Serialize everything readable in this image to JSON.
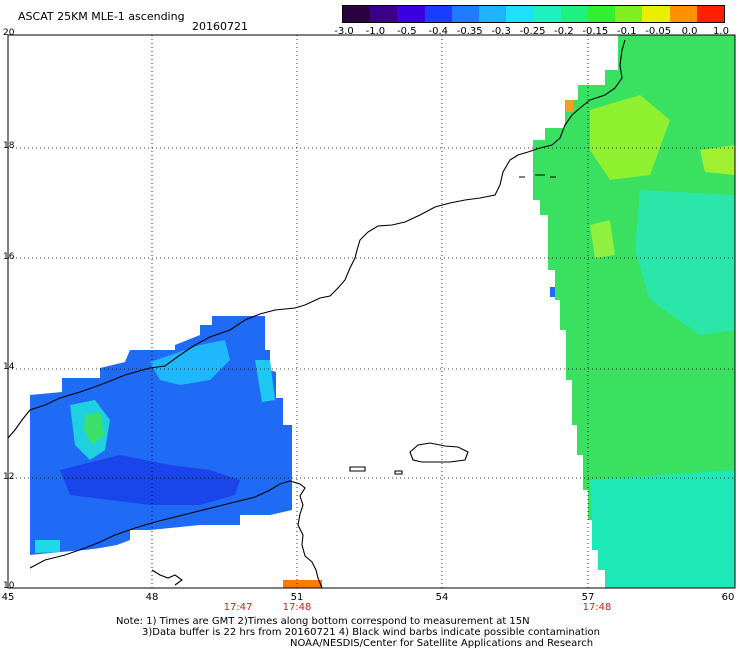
{
  "header": {
    "product": "ASCAT 25KM MLE-1 ascending",
    "date": "20160721"
  },
  "colorbar": {
    "ticks": [
      "-3.0",
      "-1.0",
      "-0.5",
      "-0.4",
      "-0.35",
      "-0.3",
      "-0.25",
      "-0.2",
      "-0.15",
      "-0.1",
      "-0.05",
      "0.0",
      "1.0"
    ],
    "colors": [
      "#2a0040",
      "#3a0088",
      "#3a00e0",
      "#1a3cff",
      "#1f7bff",
      "#1fb2ff",
      "#1fe0ff",
      "#1ff0c0",
      "#1ff080",
      "#30f030",
      "#80f020",
      "#e8f000",
      "#ff9000",
      "#ff2000"
    ]
  },
  "map": {
    "lat_labels": [
      "20",
      "18",
      "16",
      "14",
      "12",
      "10"
    ],
    "lon_labels": [
      "45",
      "48",
      "51",
      "54",
      "57",
      "60"
    ],
    "pass_times": [
      "17:47",
      "17:48",
      "17:48"
    ]
  },
  "footer": {
    "line1": "Note: 1) Times are GMT 2)Times along bottom correspond to measurement at 15N",
    "line2": "3)Data buffer is 22 hrs from 20160721 4) Black wind barbs indicate possible contamination",
    "line3": "NOAA/NESDIS/Center for Satellite Applications and Research"
  }
}
